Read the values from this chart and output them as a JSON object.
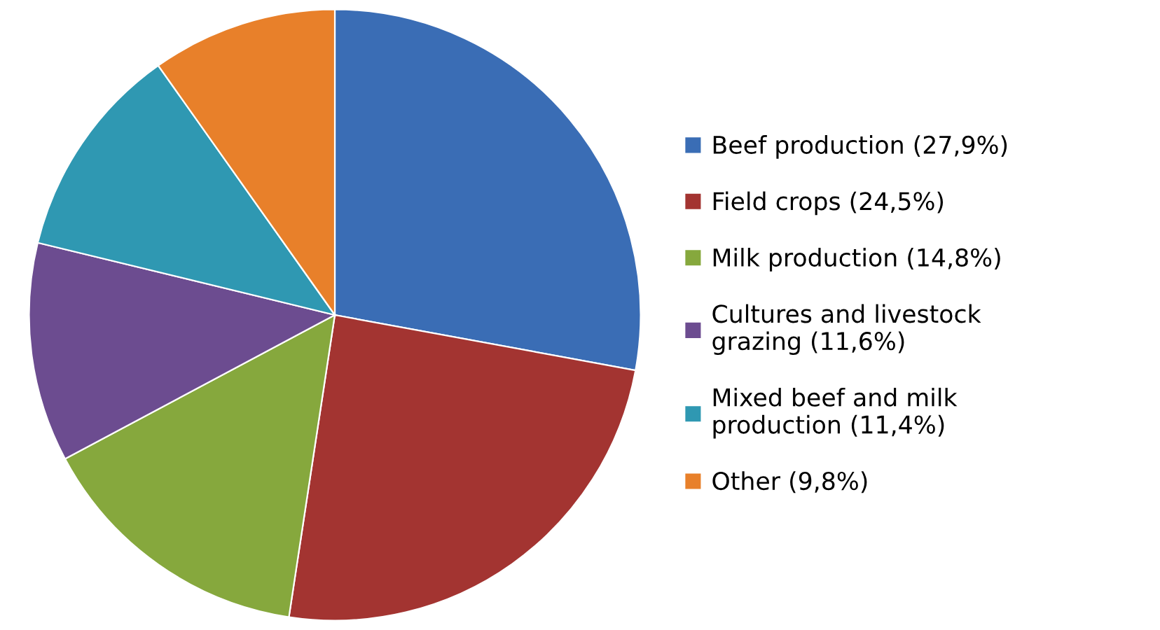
{
  "chart_data": {
    "type": "pie",
    "categories": [
      "Beef production (27,9%)",
      "Field crops (24,5%)",
      "Milk production (14,8%)",
      "Cultures and livestock\ngrazing (11,6%)",
      "Mixed beef and milk\nproduction (11,4%)",
      "Other (9,8%)"
    ],
    "values": [
      27.9,
      24.5,
      14.8,
      11.6,
      11.4,
      9.8
    ],
    "colors": [
      "#3a6db5",
      "#a33431",
      "#86a83d",
      "#6c4c90",
      "#2f98b2",
      "#e8802a"
    ],
    "legend": "right"
  }
}
